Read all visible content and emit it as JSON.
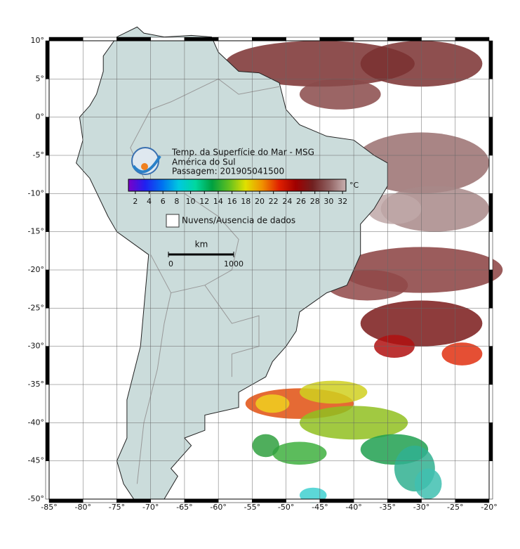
{
  "map": {
    "title": "Temp. da Superfície do Mar - MSG",
    "subtitle": "América do Sul",
    "pass": "Passagem: 201905041500",
    "colorbar": {
      "unit": "°C",
      "lim": [
        1,
        32.5
      ],
      "ticks": [
        2,
        4,
        6,
        8,
        10,
        12,
        14,
        16,
        18,
        20,
        22,
        24,
        26,
        28,
        30,
        32
      ],
      "colors": [
        "#7a00c8",
        "#2020f0",
        "#0070f0",
        "#00c8e0",
        "#00d8a0",
        "#00a040",
        "#60c020",
        "#e0e000",
        "#f09000",
        "#e02000",
        "#a00000",
        "#702020",
        "#906060",
        "#c8b0b0"
      ]
    },
    "legend": "Nuvens/Ausencia de dados",
    "scale": {
      "unit": "km",
      "ticks": [
        0,
        1000
      ]
    },
    "xlim": [
      -85,
      -20
    ],
    "ylim": [
      -50,
      10
    ],
    "lon_ticks": [
      {
        "value": -85,
        "label": "-85°"
      },
      {
        "value": -80,
        "label": "-80°"
      },
      {
        "value": -75,
        "label": "-75°"
      },
      {
        "value": -70,
        "label": "-70°"
      },
      {
        "value": -65,
        "label": "-65°"
      },
      {
        "value": -60,
        "label": "-60°"
      },
      {
        "value": -55,
        "label": "-55°"
      },
      {
        "value": -50,
        "label": "-50°"
      },
      {
        "value": -45,
        "label": "-45°"
      },
      {
        "value": -40,
        "label": "-40°"
      },
      {
        "value": -35,
        "label": "-35°"
      },
      {
        "value": -30,
        "label": "-30°"
      },
      {
        "value": -25,
        "label": "-25°"
      },
      {
        "value": -20,
        "label": "-20°"
      }
    ],
    "lat_ticks": [
      {
        "value": 10,
        "label": "10°"
      },
      {
        "value": 5,
        "label": "5°"
      },
      {
        "value": 0,
        "label": "0°"
      },
      {
        "value": -5,
        "label": "-5°"
      },
      {
        "value": -10,
        "label": "-10°"
      },
      {
        "value": -15,
        "label": "-15°"
      },
      {
        "value": -20,
        "label": "-20°"
      },
      {
        "value": -25,
        "label": "-25°"
      },
      {
        "value": -30,
        "label": "-30°"
      },
      {
        "value": -35,
        "label": "-35°"
      },
      {
        "value": -40,
        "label": "-40°"
      },
      {
        "value": -45,
        "label": "-45°"
      },
      {
        "value": -50,
        "label": "-50°"
      }
    ]
  }
}
